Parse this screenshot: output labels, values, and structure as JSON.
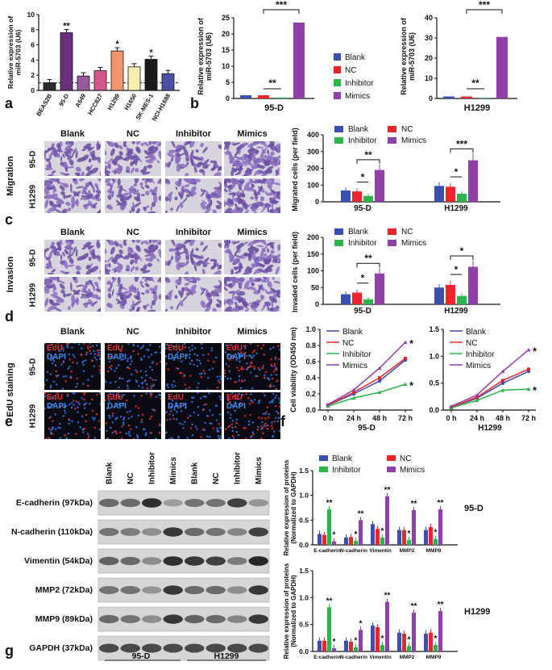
{
  "panel_labels": {
    "a": "a",
    "b": "b",
    "c": "c",
    "d": "d",
    "e": "e",
    "f": "f",
    "g": "g"
  },
  "colors": {
    "blank": "#3a4fb0",
    "nc": "#e8262b",
    "inhibitor": "#2bb54a",
    "mimics": "#8e3fa8"
  },
  "group_labels": [
    "Blank",
    "NC",
    "Inhibitor",
    "Mimics"
  ],
  "cell_lines": [
    "95-D",
    "H1299"
  ],
  "chart_data": [
    {
      "id": "a",
      "type": "bar",
      "ylabel": "Relative expression of miR-5703 (U6)",
      "ylim": [
        0,
        10
      ],
      "yticks": [
        "0",
        "2",
        "4",
        "6",
        "8",
        "10"
      ],
      "categories": [
        "BEAS2B",
        "95-D",
        "A549",
        "HCC827",
        "H1299",
        "H1650",
        "SK-MES-1",
        "NCI-H1688"
      ],
      "values": [
        1.0,
        7.6,
        1.9,
        2.6,
        5.2,
        3.1,
        4.1,
        2.2
      ],
      "colors": [
        "#2a2a2a",
        "#6b2f7e",
        "#9a5a9e",
        "#d4568a",
        "#f2956a",
        "#f6efb0",
        "#1a1a1a",
        "#4a52a8"
      ],
      "sig": [
        "",
        "**",
        "",
        "",
        "*",
        "",
        "*",
        ""
      ]
    },
    {
      "id": "b1",
      "type": "bar",
      "title": "95-D",
      "ylabel": "Relative expression of miR-5703 (U6)",
      "ylim": [
        0,
        25
      ],
      "yticks": [
        "0",
        "5",
        "10",
        "15",
        "20",
        "25"
      ],
      "values": [
        1.0,
        1.0,
        0.3,
        23.5
      ],
      "sig_low": "**",
      "sig_high": "***"
    },
    {
      "id": "b2",
      "type": "bar",
      "title": "H1299",
      "ylabel": "Relative expression of miR-5703 (U6)",
      "ylim": [
        0,
        40
      ],
      "yticks": [
        "0",
        "10",
        "20",
        "30",
        "40"
      ],
      "values": [
        1.0,
        1.0,
        0.3,
        30.5
      ],
      "sig_low": "**",
      "sig_high": "***"
    },
    {
      "id": "c",
      "type": "bar",
      "ylabel": "Migrated cells (per field)",
      "ylim": [
        0,
        400
      ],
      "yticks": [
        "0",
        "100",
        "200",
        "300",
        "400"
      ],
      "groups": [
        {
          "name": "95-D",
          "values": [
            68,
            62,
            35,
            190
          ]
        },
        {
          "name": "H1299",
          "values": [
            95,
            90,
            48,
            248
          ]
        }
      ],
      "sigs": [
        "*",
        "**",
        "*",
        "***"
      ]
    },
    {
      "id": "d",
      "type": "bar",
      "ylabel": "Invaded cells (per field)",
      "ylim": [
        0,
        200
      ],
      "yticks": [
        "0",
        "50",
        "100",
        "150",
        "200"
      ],
      "groups": [
        {
          "name": "95-D",
          "values": [
            30,
            35,
            15,
            92
          ]
        },
        {
          "name": "H1299",
          "values": [
            50,
            58,
            25,
            112
          ]
        }
      ],
      "sigs": [
        "*",
        "**",
        "*",
        "*"
      ]
    },
    {
      "id": "f1",
      "type": "line",
      "xlabel": "95-D",
      "ylabel": "Cell viability (OD450 nm)",
      "ylim": [
        0,
        1.0
      ],
      "yticks": [
        "0.0",
        "0.2",
        "0.4",
        "0.6",
        "0.8",
        "1.0"
      ],
      "x": [
        "0 h",
        "24 h",
        "48 h",
        "72 h"
      ],
      "series": [
        {
          "name": "Blank",
          "values": [
            0.06,
            0.2,
            0.36,
            0.62
          ]
        },
        {
          "name": "NC",
          "values": [
            0.06,
            0.22,
            0.4,
            0.64
          ]
        },
        {
          "name": "Inhibitor",
          "values": [
            0.05,
            0.15,
            0.22,
            0.32
          ]
        },
        {
          "name": "Mimics",
          "values": [
            0.07,
            0.25,
            0.52,
            0.84
          ]
        }
      ],
      "sig": [
        "*",
        "*"
      ]
    },
    {
      "id": "f2",
      "type": "line",
      "xlabel": "H1299",
      "ylim": [
        0,
        1.5
      ],
      "yticks": [
        "0.0",
        "0.5",
        "1.0",
        "1.5"
      ],
      "x": [
        "0 h",
        "24 h",
        "48 h",
        "72 h"
      ],
      "series": [
        {
          "name": "Blank",
          "values": [
            0.05,
            0.22,
            0.5,
            0.72
          ]
        },
        {
          "name": "NC",
          "values": [
            0.05,
            0.24,
            0.55,
            0.76
          ]
        },
        {
          "name": "Inhibitor",
          "values": [
            0.04,
            0.18,
            0.37,
            0.39
          ]
        },
        {
          "name": "Mimics",
          "values": [
            0.07,
            0.28,
            0.72,
            1.12
          ]
        }
      ],
      "sig": [
        "*",
        "*"
      ]
    },
    {
      "id": "g1",
      "type": "bar",
      "cell_line": "95-D",
      "ylabel": "Relative expression of proteins (Normalized to GAPDH)",
      "ylim": [
        0,
        1.5
      ],
      "yticks": [
        "0.0",
        "0.5",
        "1.0",
        "1.5"
      ],
      "categories": [
        "E-cadherin",
        "N-cadherin",
        "Vimentin",
        "MMP2",
        "MMP9"
      ],
      "series": [
        {
          "name": "Blank",
          "values": [
            0.22,
            0.15,
            0.42,
            0.3,
            0.3
          ]
        },
        {
          "name": "NC",
          "values": [
            0.2,
            0.16,
            0.32,
            0.3,
            0.36
          ]
        },
        {
          "name": "Inhibitor",
          "values": [
            0.72,
            0.08,
            0.15,
            0.1,
            0.12
          ]
        },
        {
          "name": "Mimics",
          "values": [
            0.07,
            0.5,
            0.98,
            0.7,
            0.72
          ]
        }
      ],
      "sig_inhibitor": [
        "**",
        "*",
        "*",
        "*",
        "*"
      ],
      "sig_mimics": [
        "*",
        "**",
        "**",
        "**",
        "**"
      ]
    },
    {
      "id": "g2",
      "type": "bar",
      "cell_line": "H1299",
      "ylabel": "Relative expression of proteins (Normalized to GAPDH)",
      "ylim": [
        0,
        1.5
      ],
      "yticks": [
        "0.0",
        "0.5",
        "1.0",
        "1.5"
      ],
      "categories": [
        "E-cadherin",
        "N-cadherin",
        "Vimentin",
        "MMP2",
        "MMP9"
      ],
      "series": [
        {
          "name": "Blank",
          "values": [
            0.2,
            0.2,
            0.48,
            0.35,
            0.33
          ]
        },
        {
          "name": "NC",
          "values": [
            0.2,
            0.18,
            0.45,
            0.33,
            0.35
          ]
        },
        {
          "name": "Inhibitor",
          "values": [
            0.82,
            0.08,
            0.12,
            0.1,
            0.12
          ]
        },
        {
          "name": "Mimics",
          "values": [
            0.06,
            0.4,
            0.92,
            0.72,
            0.75
          ]
        }
      ],
      "sig_inhibitor": [
        "**",
        "*",
        "*",
        "*",
        "*"
      ],
      "sig_mimics": [
        "*",
        "*",
        "**",
        "**",
        "**"
      ]
    }
  ],
  "micro": {
    "migration_label": "Migration",
    "invasion_label": "Invasion",
    "edu_label": "EdU staining",
    "edu": "EdU",
    "dapi": "DAPI"
  },
  "blot": {
    "lanes": [
      "Blank",
      "NC",
      "Inhibitor",
      "Mimics",
      "Blank",
      "NC",
      "Inhibitor",
      "Mimics"
    ],
    "proteins": [
      "E-cadherin (97kDa)",
      "N-cadherin (110kDa)",
      "Vimentin (54kDa)",
      "MMP2 (72kDa)",
      "MMP9 (89kDa)",
      "GAPDH (37kDa)"
    ],
    "groups": [
      "95-D",
      "H1299"
    ],
    "intensity": [
      [
        0.55,
        0.55,
        0.9,
        0.25,
        0.5,
        0.5,
        0.8,
        0.3
      ],
      [
        0.5,
        0.45,
        0.35,
        0.85,
        0.55,
        0.5,
        0.4,
        0.8
      ],
      [
        0.6,
        0.55,
        0.35,
        0.9,
        0.85,
        0.8,
        0.45,
        0.95
      ],
      [
        0.5,
        0.5,
        0.3,
        0.85,
        0.55,
        0.55,
        0.35,
        0.85
      ],
      [
        0.55,
        0.5,
        0.35,
        0.85,
        0.6,
        0.55,
        0.4,
        0.85
      ],
      [
        0.75,
        0.75,
        0.75,
        0.75,
        0.75,
        0.75,
        0.75,
        0.75
      ]
    ]
  }
}
